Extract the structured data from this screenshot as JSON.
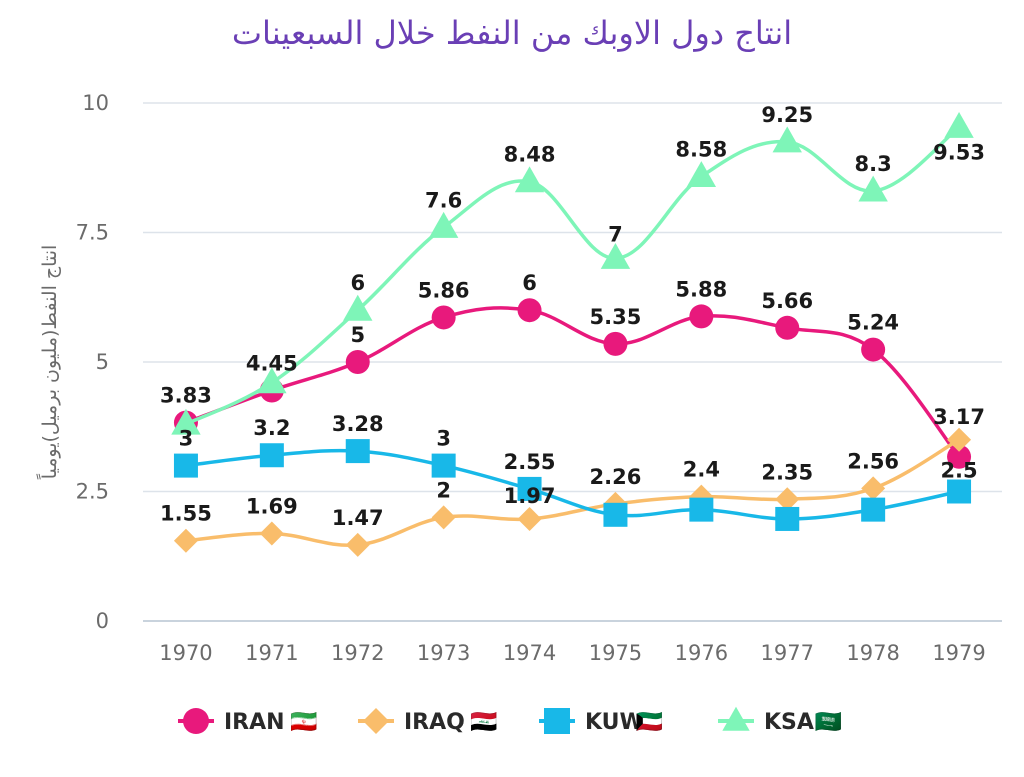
{
  "chart_data": {
    "type": "line",
    "title": "انتاج دول الاوبك من النفط خلال السبعينات",
    "xlabel": "",
    "ylabel": "انتاج النفط(مليون برميل)يومياً",
    "categories": [
      "1970",
      "1971",
      "1972",
      "1973",
      "1974",
      "1975",
      "1976",
      "1977",
      "1978",
      "1979"
    ],
    "ylim": [
      0,
      10
    ],
    "yticks": [
      0,
      2.5,
      5,
      7.5,
      10
    ],
    "ytick_labels": [
      "0",
      "2.5",
      "5",
      "7.5",
      "10"
    ],
    "grid": true,
    "legend_position": "bottom",
    "series": [
      {
        "name": "IRAN",
        "color": "#e8197c",
        "marker": "circle",
        "values": [
          3.83,
          4.45,
          5,
          5.86,
          6,
          5.35,
          5.88,
          5.66,
          5.24,
          3.17
        ],
        "labels": [
          "3.83",
          "4.45",
          "5",
          "5.86",
          "6",
          "5.35",
          "5.88",
          "5.66",
          "5.24",
          "3.17"
        ]
      },
      {
        "name": "IRAQ",
        "color": "#f9bd6b",
        "marker": "diamond",
        "values": [
          1.55,
          1.69,
          1.47,
          2,
          1.97,
          2.26,
          2.4,
          2.35,
          2.56,
          3.5
        ],
        "labels": [
          "1.55",
          "1.69",
          "1.47",
          "2",
          "1.97",
          "2.26",
          "2.4",
          "2.35",
          "2.56",
          ""
        ]
      },
      {
        "name": "KUW",
        "color": "#18b8e8",
        "marker": "square",
        "values": [
          3,
          3.2,
          3.28,
          3,
          2.55,
          2.05,
          2.15,
          1.97,
          2.15,
          2.5
        ],
        "labels": [
          "3",
          "3.2",
          "3.28",
          "3",
          "2.55",
          "",
          "",
          "",
          "",
          "2.5"
        ]
      },
      {
        "name": "KSA",
        "color": "#7ef5b8",
        "marker": "triangle",
        "values": [
          3.8,
          4.6,
          6,
          7.6,
          8.48,
          7,
          8.58,
          9.25,
          8.3,
          9.53
        ],
        "labels": [
          "",
          "",
          "6",
          "7.6",
          "8.48",
          "7",
          "8.58",
          "9.25",
          "8.3",
          "9.53"
        ]
      }
    ]
  },
  "legend_flags": {
    "IRAN": "🇮🇷",
    "IRAQ": "🇮🇶",
    "KUW": "🇰🇼",
    "KSA": "🇸🇦"
  }
}
